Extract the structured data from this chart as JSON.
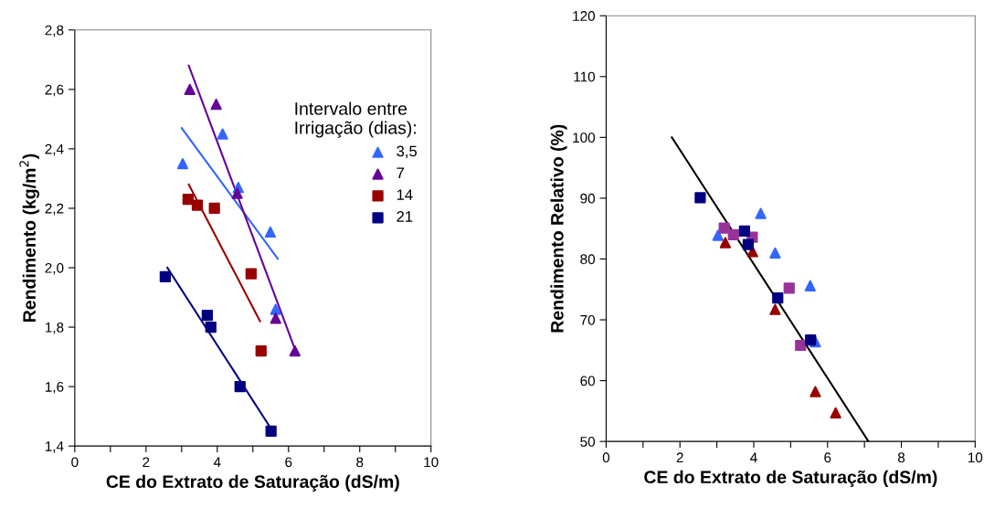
{
  "chart_data": [
    {
      "type": "scatter",
      "xlabel": "CE do Extrato de Saturação (dS/m)",
      "ylabel": "Rendimento (kg/m$^{2}$)",
      "legend_title": "Intervalo entre\nIrrigação (dias):",
      "legend": "right",
      "grid": false,
      "xlim": [
        0,
        10
      ],
      "xticks": [
        0,
        {
          "value": 1,
          "label": null
        },
        2,
        {
          "value": 3,
          "label": null
        },
        4,
        {
          "value": 5,
          "label": null
        },
        6,
        {
          "value": 7,
          "label": null
        },
        8,
        {
          "value": 9,
          "label": null
        },
        10
      ],
      "ylim": [
        1.4,
        2.8
      ],
      "yticks": [
        {
          "value": 1.4,
          "label": "1,4"
        },
        {
          "value": 1.6,
          "label": "1,6"
        },
        {
          "value": 1.8,
          "label": "1,8"
        },
        {
          "value": 2.0,
          "label": "2,0"
        },
        {
          "value": 2.2,
          "label": "2,2"
        },
        {
          "value": 2.4,
          "label": "2,4"
        },
        {
          "value": 2.6,
          "label": "2,6"
        },
        {
          "value": 2.8,
          "label": "2,8"
        }
      ],
      "series": [
        {
          "name": "3,5",
          "color": "#3366ff",
          "marker": "triangle",
          "x": [
            3.03,
            4.15,
            4.59,
            5.49,
            5.64
          ],
          "values": [
            2.35,
            2.45,
            2.27,
            2.12,
            1.86
          ]
        },
        {
          "name": "7",
          "color": "#660099",
          "marker": "triangle",
          "x": [
            3.23,
            3.97,
            4.56,
            5.64,
            6.18
          ],
          "values": [
            2.6,
            2.55,
            2.25,
            1.83,
            1.72
          ]
        },
        {
          "name": "14",
          "color": "#990000",
          "marker": "square",
          "x": [
            3.18,
            3.44,
            3.92,
            4.95,
            5.23
          ],
          "values": [
            2.23,
            2.21,
            2.2,
            1.98,
            1.72
          ]
        },
        {
          "name": "21",
          "color": "#000080",
          "marker": "square",
          "x": [
            2.54,
            3.72,
            3.82,
            4.64,
            5.51
          ],
          "values": [
            1.97,
            1.84,
            1.8,
            1.6,
            1.45
          ]
        },
        {
          "type": "line",
          "color": "#3366ff",
          "x": [
            3.0,
            5.7
          ],
          "values": [
            2.47,
            2.03
          ]
        },
        {
          "type": "line",
          "color": "#660099",
          "x": [
            3.2,
            6.2
          ],
          "values": [
            2.68,
            1.72
          ]
        },
        {
          "type": "line",
          "color": "#990000",
          "x": [
            3.2,
            5.2
          ],
          "values": [
            2.28,
            1.82
          ]
        },
        {
          "type": "line",
          "color": "#000080",
          "x": [
            2.6,
            5.5
          ],
          "values": [
            2.0,
            1.46
          ]
        }
      ]
    },
    {
      "type": "scatter",
      "xlabel": "CE do Extrato de Saturação (dS/m)",
      "ylabel": "Rendimento Relativo (%)",
      "grid": false,
      "xlim": [
        0,
        10
      ],
      "xticks": [
        0,
        {
          "value": 1,
          "label": null
        },
        2,
        {
          "value": 3,
          "label": null
        },
        4,
        {
          "value": 5,
          "label": null
        },
        6,
        {
          "value": 7,
          "label": null
        },
        8,
        {
          "value": 9,
          "label": null
        },
        10
      ],
      "ylim": [
        50,
        120
      ],
      "yticks": [
        50,
        60,
        70,
        80,
        90,
        100,
        110,
        120
      ],
      "series": [
        {
          "color": "#3366ff",
          "marker": "triangle",
          "x": [
            3.03,
            4.19,
            4.58,
            5.53,
            5.67
          ],
          "values": [
            83.9,
            87.5,
            81.0,
            75.6,
            66.4
          ]
        },
        {
          "color": "#990000",
          "marker": "triangle",
          "x": [
            3.23,
            3.97,
            4.58,
            5.67,
            6.22
          ],
          "values": [
            82.7,
            81.2,
            71.7,
            58.2,
            54.7
          ]
        },
        {
          "color": "#993399",
          "marker": "square",
          "x": [
            3.2,
            3.45,
            3.96,
            4.96,
            5.27
          ],
          "values": [
            85.1,
            84.0,
            83.6,
            75.2,
            65.8
          ]
        },
        {
          "color": "#000080",
          "marker": "square",
          "x": [
            2.55,
            3.75,
            3.85,
            4.65,
            5.54
          ],
          "values": [
            90.1,
            84.6,
            82.4,
            73.6,
            66.7
          ]
        },
        {
          "type": "line",
          "color": "#000000",
          "x": [
            1.78,
            7.11
          ],
          "values": [
            100,
            50
          ]
        }
      ]
    }
  ]
}
